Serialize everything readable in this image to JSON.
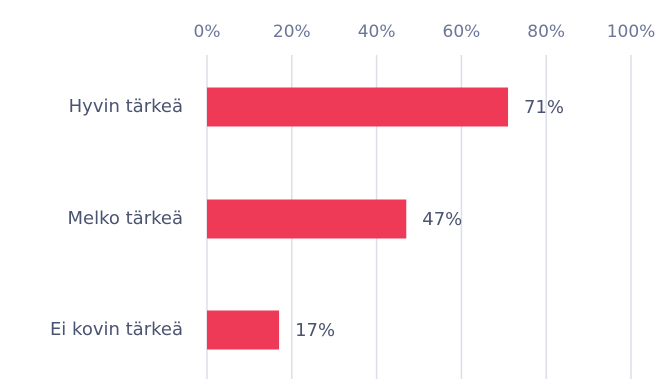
{
  "chart_data": {
    "type": "bar",
    "orientation": "horizontal",
    "categories": [
      "Hyvin tärkeä",
      "Melko tärkeä",
      "Ei kovin tärkeä"
    ],
    "values": [
      71,
      47,
      17
    ],
    "value_labels": [
      "71%",
      "47%",
      "17%"
    ],
    "xlim": [
      0,
      100
    ],
    "x_ticks": [
      0,
      20,
      40,
      60,
      80,
      100
    ],
    "x_tick_labels": [
      "0%",
      "20%",
      "40%",
      "60%",
      "80%",
      "100%"
    ],
    "x_axis_position": "top",
    "grid": true,
    "bar_color": "#ee3a57",
    "grid_color": "#dcdfe8",
    "text_color": "#4a5370",
    "tick_color": "#6c7797"
  }
}
